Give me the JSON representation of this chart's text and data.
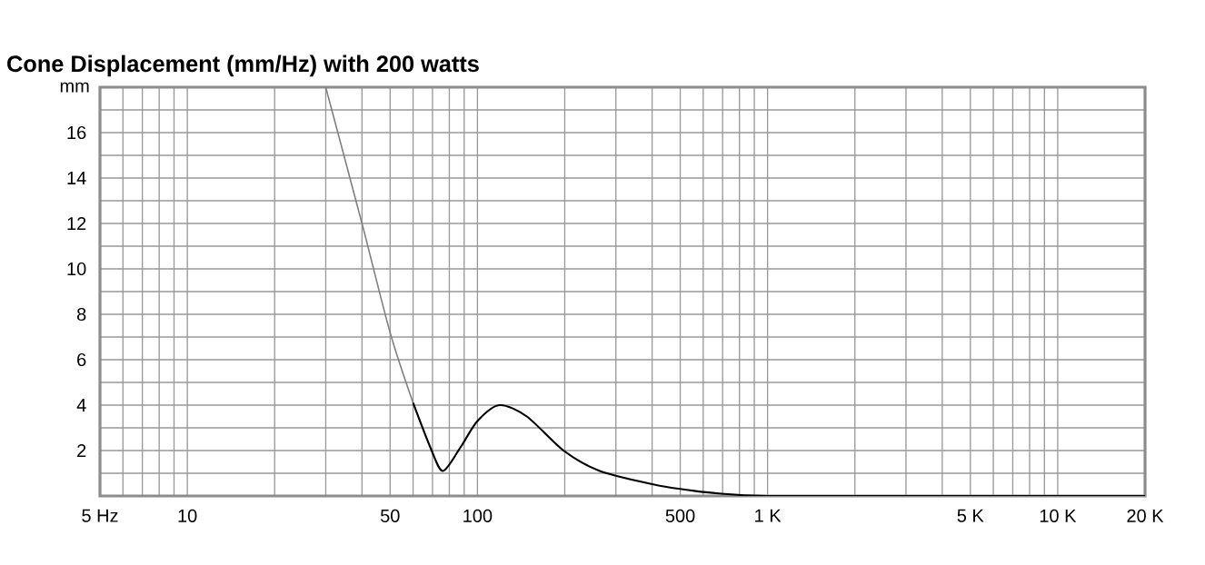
{
  "chart_data": {
    "type": "line",
    "title": "Cone Displacement (mm/Hz) with 200 watts",
    "ylabel": "mm",
    "log": "x",
    "grid": true,
    "xlim": [
      5,
      20000
    ],
    "ylim": [
      0,
      18
    ],
    "xticks": [
      {
        "value": 5,
        "label": "5 Hz"
      },
      {
        "value": 6,
        "label": null
      },
      {
        "value": 7,
        "label": null
      },
      {
        "value": 8,
        "label": null
      },
      {
        "value": 9,
        "label": null
      },
      10,
      {
        "value": 20,
        "label": null
      },
      {
        "value": 30,
        "label": null
      },
      {
        "value": 40,
        "label": null
      },
      50,
      {
        "value": 60,
        "label": null
      },
      {
        "value": 70,
        "label": null
      },
      {
        "value": 80,
        "label": null
      },
      {
        "value": 90,
        "label": null
      },
      100,
      {
        "value": 200,
        "label": null
      },
      {
        "value": 300,
        "label": null
      },
      {
        "value": 400,
        "label": null
      },
      500,
      {
        "value": 600,
        "label": null
      },
      {
        "value": 700,
        "label": null
      },
      {
        "value": 800,
        "label": null
      },
      {
        "value": 900,
        "label": null
      },
      {
        "value": 1000,
        "label": "1 K"
      },
      {
        "value": 2000,
        "label": null
      },
      {
        "value": 3000,
        "label": null
      },
      {
        "value": 4000,
        "label": null
      },
      {
        "value": 5000,
        "label": "5 K"
      },
      {
        "value": 6000,
        "label": null
      },
      {
        "value": 7000,
        "label": null
      },
      {
        "value": 8000,
        "label": null
      },
      {
        "value": 9000,
        "label": null
      },
      {
        "value": 10000,
        "label": "10 K"
      },
      {
        "value": 20000,
        "label": "20 K"
      }
    ],
    "yticks": [
      {
        "value": 1,
        "label": null
      },
      2,
      {
        "value": 3,
        "label": null
      },
      4,
      {
        "value": 5,
        "label": null
      },
      6,
      {
        "value": 7,
        "label": null
      },
      8,
      {
        "value": 9,
        "label": null
      },
      10,
      {
        "value": 11,
        "label": null
      },
      12,
      {
        "value": 13,
        "label": null
      },
      14,
      {
        "value": 15,
        "label": null
      },
      16,
      {
        "value": 17,
        "label": null
      }
    ],
    "series": [
      {
        "color": "#808080",
        "x": [
          30,
          40,
          50,
          60
        ],
        "values": [
          18,
          12,
          7.2,
          4.1
        ]
      },
      {
        "color": "#000000",
        "x": [
          60,
          69,
          76,
          87,
          100,
          119,
          148,
          198,
          264,
          407,
          506,
          692,
          1000,
          2000,
          5000,
          20000
        ],
        "values": [
          4.1,
          2.1,
          1.1,
          2.1,
          3.3,
          4.0,
          3.5,
          2.0,
          1.1,
          0.5,
          0.3,
          0.1,
          0.0,
          0.0,
          0.0,
          0.0
        ]
      }
    ]
  }
}
